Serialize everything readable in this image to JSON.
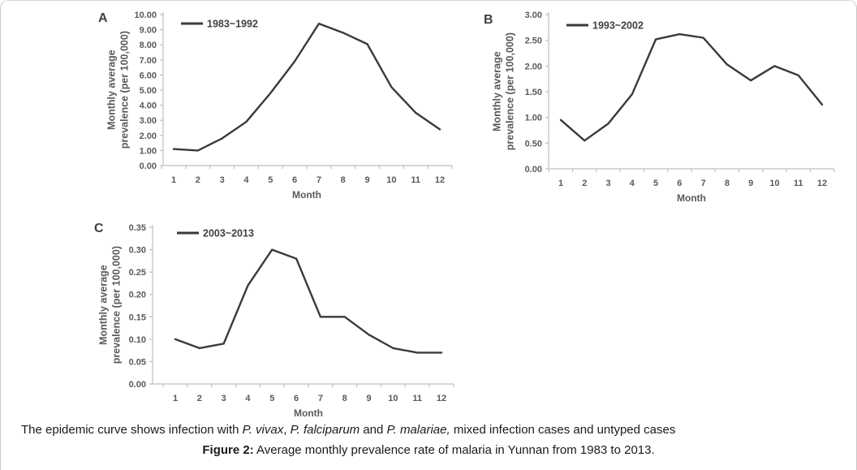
{
  "caption": {
    "line1": [
      {
        "text": "The epidemic curve shows infection with ",
        "style": "normal"
      },
      {
        "text": "P. vivax",
        "style": "italic"
      },
      {
        "text": ", ",
        "style": "normal"
      },
      {
        "text": "P. falciparum",
        "style": "italic"
      },
      {
        "text": " and ",
        "style": "normal"
      },
      {
        "text": "P. malariae,",
        "style": "italic"
      },
      {
        "text": " mixed infection cases and untyped cases",
        "style": "normal"
      }
    ],
    "line2": [
      {
        "text": "Figure 2:",
        "style": "bold"
      },
      {
        "text": " Average monthly prevalence rate of malaria in Yunnan from 1983 to 2013.",
        "style": "normal"
      }
    ]
  },
  "chart_data": [
    {
      "type": "line",
      "panel_label": "A",
      "legend": "1983~1992",
      "legend_position": "top-left",
      "xlabel": "Month",
      "ylabel_line1": "Monthly average",
      "ylabel_line2": "prevalence (per 100,000)",
      "categories": [
        "1",
        "2",
        "3",
        "4",
        "5",
        "6",
        "7",
        "8",
        "9",
        "10",
        "11",
        "12"
      ],
      "values": [
        1.1,
        1.0,
        1.8,
        2.9,
        4.8,
        6.9,
        9.4,
        8.8,
        8.05,
        5.2,
        3.5,
        2.4
      ],
      "ylim": [
        0,
        10
      ],
      "ytick_values": [
        0,
        1,
        2,
        3,
        4,
        5,
        6,
        7,
        8,
        9,
        10
      ],
      "ytick_labels": [
        "0.00",
        "1.00",
        "2.00",
        "3.00",
        "4.00",
        "5.00",
        "6.00",
        "7.00",
        "8.00",
        "9.00",
        "10.00"
      ],
      "grid": false,
      "line_color": "#3a3a3a",
      "axis_color": "#bfbfbf",
      "label_color": "#595959"
    },
    {
      "type": "line",
      "panel_label": "B",
      "legend": "1993~2002",
      "legend_position": "top-left",
      "xlabel": "Month",
      "ylabel_line1": "Monthly average",
      "ylabel_line2": "prevalence (per 100,000)",
      "categories": [
        "1",
        "2",
        "3",
        "4",
        "5",
        "6",
        "7",
        "8",
        "9",
        "10",
        "11",
        "12"
      ],
      "values": [
        0.95,
        0.55,
        0.88,
        1.45,
        2.52,
        2.62,
        2.55,
        2.03,
        1.72,
        2.0,
        1.82,
        1.25
      ],
      "ylim": [
        0,
        3
      ],
      "ytick_values": [
        0,
        0.5,
        1,
        1.5,
        2,
        2.5,
        3
      ],
      "ytick_labels": [
        "0.00",
        "0.50",
        "1.00",
        "1.50",
        "2.00",
        "2.50",
        "3.00"
      ],
      "grid": false,
      "line_color": "#3a3a3a",
      "axis_color": "#bfbfbf",
      "label_color": "#595959"
    },
    {
      "type": "line",
      "panel_label": "C",
      "legend": "2003~2013",
      "legend_position": "top-left",
      "xlabel": "Month",
      "ylabel_line1": "Monthly average",
      "ylabel_line2": "prevalence (per 100,000)",
      "categories": [
        "1",
        "2",
        "3",
        "4",
        "5",
        "6",
        "7",
        "8",
        "9",
        "10",
        "11",
        "12"
      ],
      "values": [
        0.1,
        0.08,
        0.09,
        0.22,
        0.3,
        0.28,
        0.15,
        0.15,
        0.11,
        0.08,
        0.07,
        0.07
      ],
      "ylim": [
        0,
        0.35
      ],
      "ytick_values": [
        0,
        0.05,
        0.1,
        0.15,
        0.2,
        0.25,
        0.3,
        0.35
      ],
      "ytick_labels": [
        "0.00",
        "0.05",
        "0.10",
        "0.15",
        "0.20",
        "0.25",
        "0.30",
        "0.35"
      ],
      "grid": false,
      "line_color": "#3a3a3a",
      "axis_color": "#bfbfbf",
      "label_color": "#595959"
    }
  ]
}
